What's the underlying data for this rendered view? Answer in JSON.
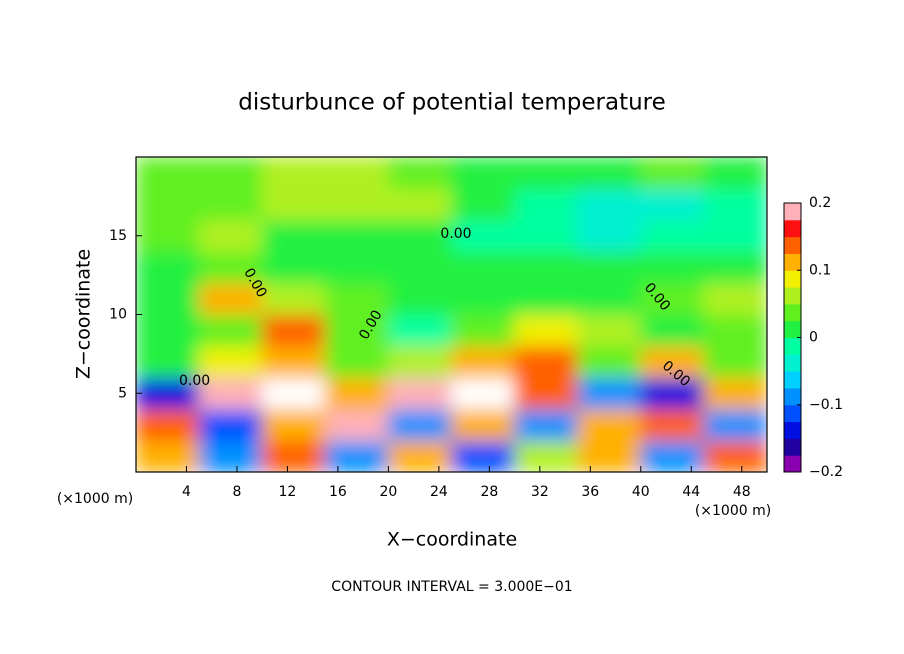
{
  "chart_data": {
    "type": "contour",
    "title": "disturbunce of potential temperature",
    "xlabel": "X−coordinate",
    "ylabel": "Z−coordinate",
    "unit_label": "(×1000 m)",
    "contour_label": "0.00",
    "footer": "CONTOUR INTERVAL = 3.000E−01",
    "xlim": [
      0,
      50
    ],
    "ylim": [
      0,
      20
    ],
    "xticks": [
      4,
      8,
      12,
      16,
      20,
      24,
      28,
      32,
      36,
      40,
      44,
      48
    ],
    "yticks": [
      5,
      10,
      15
    ],
    "x": [
      2.5,
      7.5,
      12.5,
      17.5,
      22.5,
      27.5,
      32.5,
      37.5,
      42.5,
      47.5
    ],
    "y": [
      1,
      3,
      5,
      7,
      9,
      11,
      13,
      15,
      17,
      19
    ],
    "z": [
      [
        0.12,
        -0.1,
        0.15,
        -0.08,
        0.1,
        -0.12,
        0.05,
        0.12,
        -0.1,
        0.15
      ],
      [
        0.15,
        -0.12,
        0.1,
        0.18,
        -0.1,
        0.12,
        -0.08,
        0.1,
        0.14,
        -0.1
      ],
      [
        -0.15,
        0.18,
        0.2,
        0.12,
        0.18,
        0.2,
        0.15,
        -0.1,
        -0.15,
        0.1
      ],
      [
        0.02,
        0.08,
        0.12,
        0.03,
        0.05,
        0.1,
        0.13,
        0.04,
        0.12,
        0.03
      ],
      [
        0.01,
        0.04,
        0.13,
        0.03,
        -0.02,
        0.03,
        0.08,
        0.05,
        0.02,
        0.04
      ],
      [
        0.02,
        0.1,
        0.06,
        0.03,
        0.02,
        0.02,
        0.01,
        0.02,
        0.03,
        0.06
      ],
      [
        0.02,
        0.03,
        0.02,
        0.02,
        0.01,
        0.0,
        0.0,
        0.0,
        0.0,
        0.01
      ],
      [
        0.03,
        0.05,
        0.02,
        0.01,
        0.01,
        -0.01,
        -0.02,
        -0.03,
        -0.02,
        -0.01
      ],
      [
        0.03,
        0.03,
        0.06,
        0.06,
        0.05,
        0.0,
        -0.02,
        -0.03,
        -0.03,
        -0.02
      ],
      [
        0.03,
        0.03,
        0.05,
        0.05,
        0.03,
        0.02,
        0.01,
        0.02,
        0.03,
        0.02
      ]
    ],
    "clim": [
      -0.2,
      0.2
    ],
    "cticks": [
      0.2,
      0.1,
      0,
      {
        "value": -0.1,
        "label": "−0.1"
      },
      {
        "value": -0.2,
        "label": "−0.2"
      }
    ],
    "colormap": [
      "#8a00b0",
      "#2000a0",
      "#0010e0",
      "#0050ff",
      "#0090ff",
      "#00d0ff",
      "#00f0d0",
      "#00ffa0",
      "#20f040",
      "#60f020",
      "#b0f020",
      "#f0f000",
      "#ffb000",
      "#ff6000",
      "#ff1010",
      "#ffb0b8"
    ],
    "over_color": "#ffffff"
  }
}
